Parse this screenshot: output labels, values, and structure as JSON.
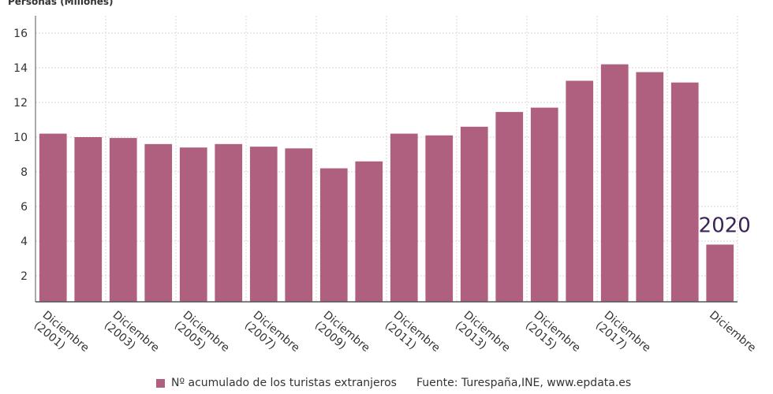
{
  "chart_data": {
    "type": "bar",
    "ylabel": "Personas (Millones)",
    "categories": [
      "2001",
      "2002",
      "2003",
      "2004",
      "2005",
      "2006",
      "2007",
      "2008",
      "2009",
      "2010",
      "2011",
      "2012",
      "2013",
      "2014",
      "2015",
      "2016",
      "2017",
      "2018",
      "2019",
      "2020"
    ],
    "tick_labels": [
      {
        "category": "2001",
        "lines": [
          "Diciembre",
          "(2001)"
        ]
      },
      {
        "category": "2003",
        "lines": [
          "Diciembre",
          "(2003)"
        ]
      },
      {
        "category": "2005",
        "lines": [
          "Diciembre",
          "(2005)"
        ]
      },
      {
        "category": "2007",
        "lines": [
          "Diciembre",
          "(2007)"
        ]
      },
      {
        "category": "2009",
        "lines": [
          "Diciembre",
          "(2009)"
        ]
      },
      {
        "category": "2011",
        "lines": [
          "Diciembre",
          "(2011)"
        ]
      },
      {
        "category": "2013",
        "lines": [
          "Diciembre",
          "(2013)"
        ]
      },
      {
        "category": "2015",
        "lines": [
          "Diciembre",
          "(2015)"
        ]
      },
      {
        "category": "2017",
        "lines": [
          "Diciembre",
          "(2017)"
        ]
      },
      {
        "category": "2020",
        "lines": [
          "Diciembre"
        ]
      }
    ],
    "series": [
      {
        "name": "Nº acumulado de los turistas extranjeros",
        "values": [
          10.2,
          10.0,
          9.95,
          9.6,
          9.4,
          9.6,
          9.45,
          9.35,
          8.2,
          8.6,
          10.2,
          10.1,
          10.6,
          11.45,
          11.7,
          13.25,
          14.2,
          13.75,
          13.15,
          3.8
        ]
      }
    ],
    "yticks": [
      2,
      4,
      6,
      8,
      10,
      12,
      14,
      16
    ],
    "ylim": [
      0.5,
      17
    ],
    "grid": true,
    "legend_position": "bottom",
    "annotation": {
      "text": "2020",
      "category": "2020"
    }
  },
  "source_text": "Fuente: Turespaña,INE, www.epdata.es",
  "colors": {
    "bar": "#b0607f",
    "grid": "#d9d9d9",
    "axis": "#555555"
  }
}
